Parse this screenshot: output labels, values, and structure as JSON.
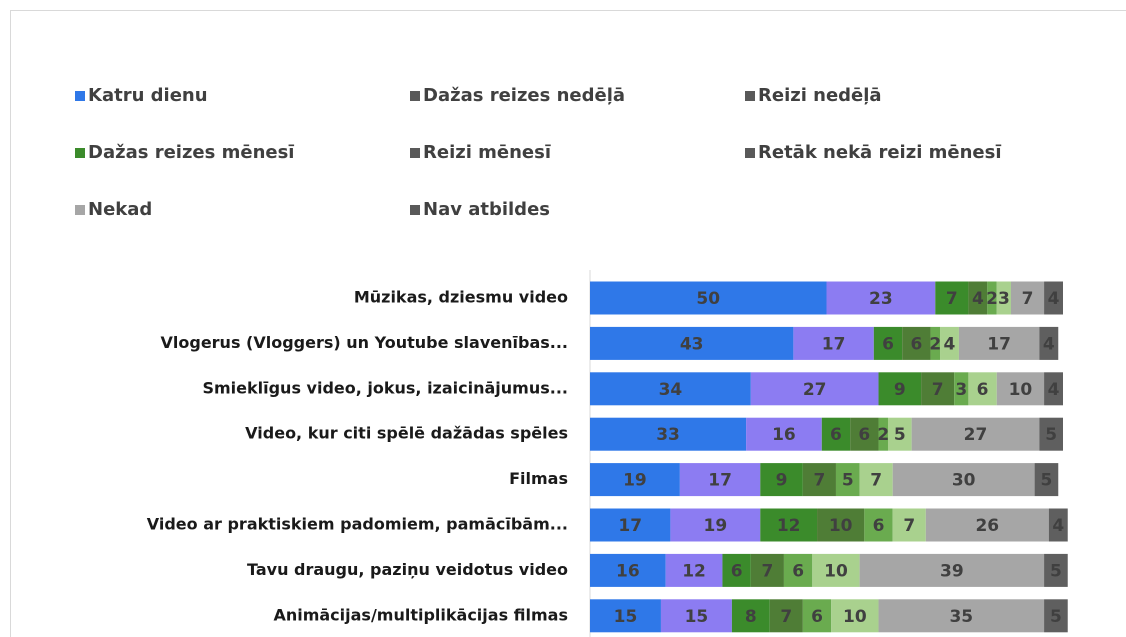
{
  "chart_data": {
    "type": "stacked_bar_horizontal",
    "categories": [
      "Mūzikas, dziesmu video",
      "Vlogerus (Vloggers) un Youtube slavenības...",
      "Smieklīgus video, jokus, izaicinājumus...",
      "Video, kur citi spēlē dažādas spēles",
      "Filmas",
      "Video ar praktiskiem padomiem, pamācībām...",
      "Tavu draugu, paziņu veidotus video",
      "Animācijas/multiplikācijas filmas"
    ],
    "xlim": [
      0,
      100
    ],
    "series": [
      {
        "name": "Katru dienu",
        "color": "#2f78e8",
        "legend_color": "#2f78e8",
        "values": [
          50,
          43,
          34,
          33,
          19,
          17,
          16,
          15
        ]
      },
      {
        "name": "Dažas reizes nedēļā",
        "color": "#8c7cf2",
        "legend_color": "#595959",
        "values": [
          23,
          17,
          27,
          16,
          17,
          19,
          12,
          15
        ]
      },
      {
        "name": "Reizi nedēļā",
        "color": "#3b8b2b",
        "legend_color": "#595959",
        "values": [
          7,
          6,
          9,
          6,
          9,
          12,
          6,
          8
        ]
      },
      {
        "name": "Dažas reizes mēnesī",
        "color": "#4f7d36",
        "legend_color": "#3b8b2b",
        "values": [
          4,
          6,
          7,
          6,
          7,
          10,
          7,
          7
        ]
      },
      {
        "name": "Reizi mēnesī",
        "color": "#6aab4f",
        "legend_color": "#595959",
        "values": [
          2,
          2,
          3,
          2,
          5,
          6,
          6,
          6
        ]
      },
      {
        "name": "Retāk nekā reizi mēnesī",
        "color": "#a9d18e",
        "legend_color": "#595959",
        "values": [
          3,
          4,
          6,
          5,
          7,
          7,
          10,
          10
        ]
      },
      {
        "name": "Nekad",
        "color": "#a6a6a6",
        "legend_color": "#a6a6a6",
        "values": [
          7,
          17,
          10,
          27,
          30,
          26,
          39,
          35
        ]
      },
      {
        "name": "Nav atbildes",
        "color": "#5f5f5f",
        "legend_color": "#595959",
        "values": [
          4,
          4,
          4,
          5,
          5,
          4,
          5,
          5
        ]
      }
    ]
  }
}
